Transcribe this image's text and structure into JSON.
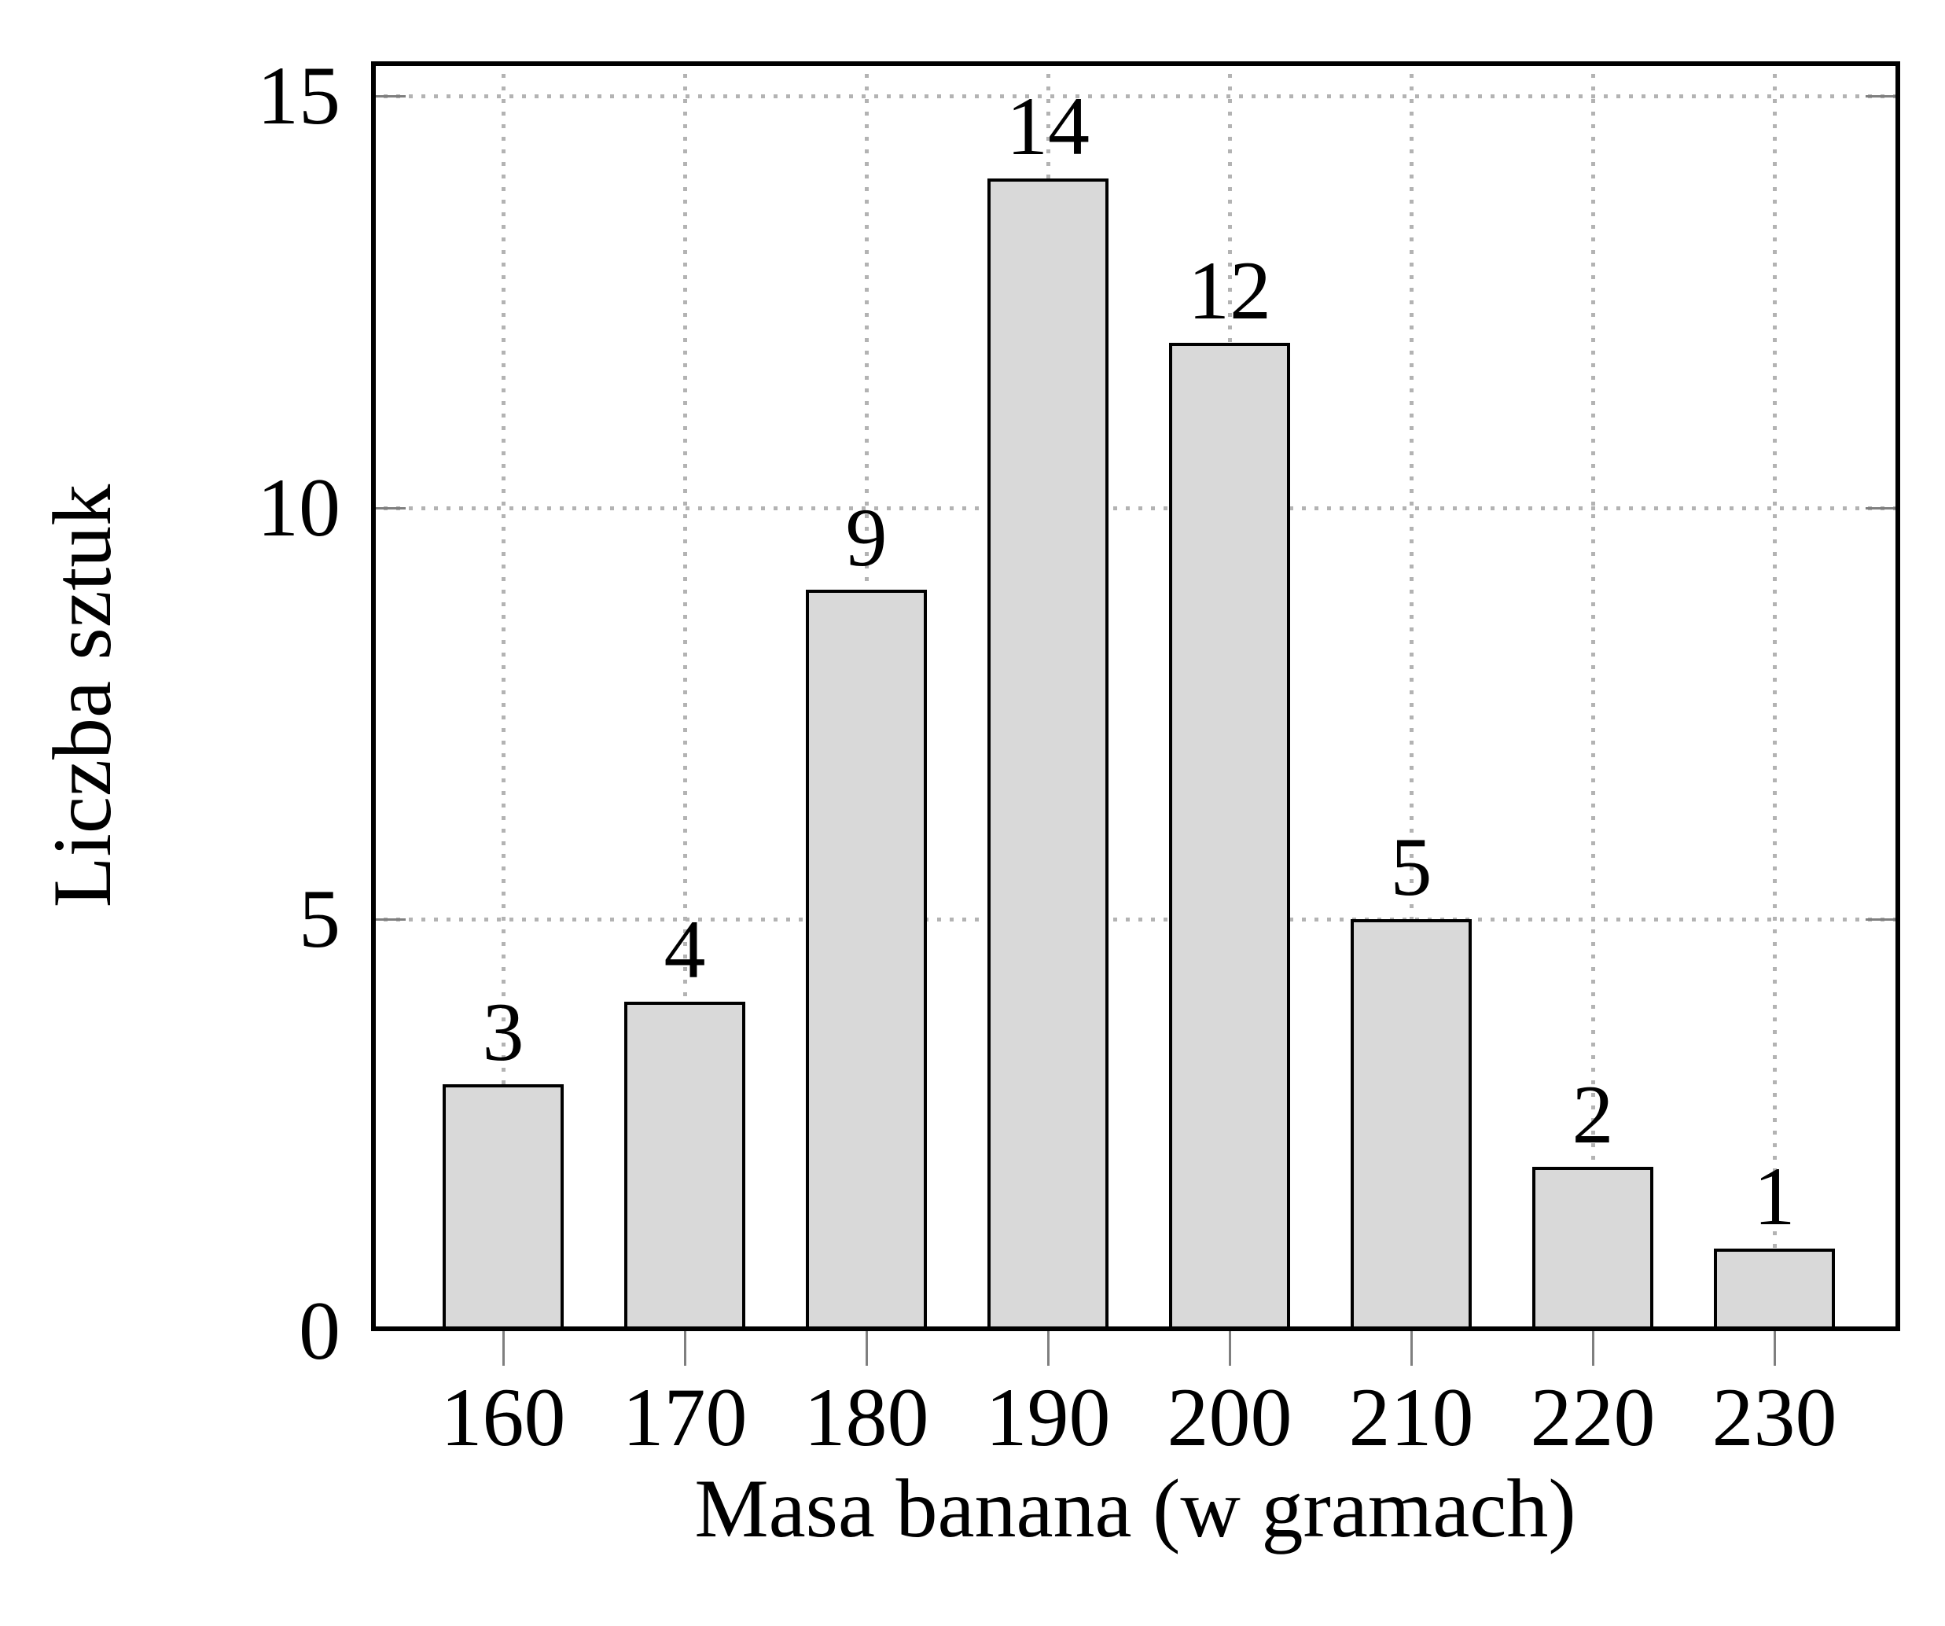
{
  "chart_data": {
    "type": "bar",
    "title": "",
    "xlabel": "Masa banana (w gramach)",
    "ylabel": "Liczba sztuk",
    "categories": [
      "160",
      "170",
      "180",
      "190",
      "200",
      "210",
      "220",
      "230"
    ],
    "values": [
      3,
      4,
      9,
      14,
      12,
      5,
      2,
      1
    ],
    "bar_value_labels": [
      "3",
      "4",
      "9",
      "14",
      "12",
      "5",
      "2",
      "1"
    ],
    "yticks": [
      0,
      5,
      10,
      15
    ],
    "ytick_labels": [
      "0",
      "5",
      "10",
      "15"
    ],
    "ylim": [
      0,
      15.4
    ],
    "grid": "dotted gridlines at every x category and every y tick",
    "legend_position": "none",
    "colors": {
      "background": "#ffffff",
      "bar_fill": "#d9d9d9",
      "bar_border": "#000000",
      "axis_frame": "#000000",
      "tick_mark": "#7f7f7f",
      "grid_dot": "#b3b3b3",
      "text": "#000000"
    }
  }
}
